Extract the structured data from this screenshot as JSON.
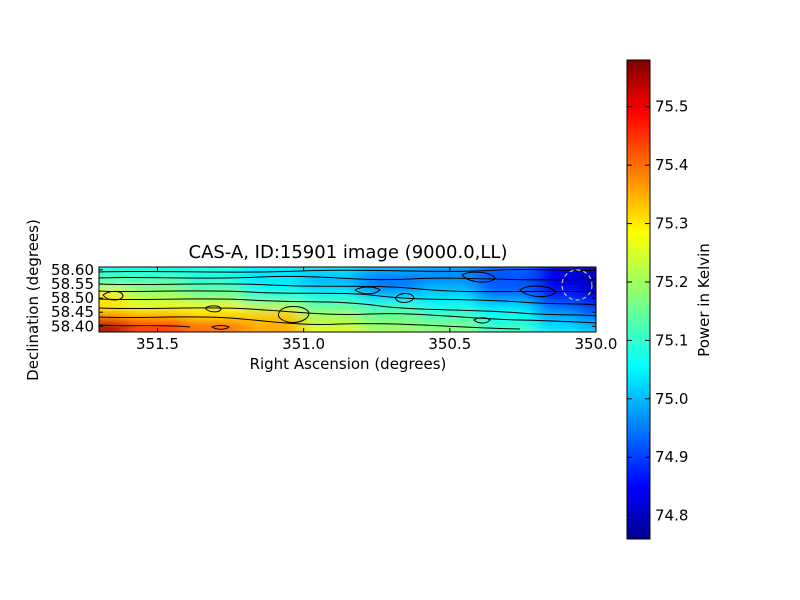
{
  "chart_data": {
    "type": "heatmap",
    "title": "CAS-A, ID:15901 image (9000.0,LL)",
    "xlabel": "Right Ascension (degrees)",
    "ylabel": "Declination (degrees)",
    "xlim": [
      351.7,
      350.0
    ],
    "ylim": [
      58.38,
      58.61
    ],
    "x_inverted": true,
    "xticks": [
      351.5,
      351.0,
      350.5,
      350.0
    ],
    "xtick_labels": [
      "351.5",
      "351.0",
      "350.5",
      "350.0"
    ],
    "yticks": [
      58.4,
      58.45,
      58.5,
      58.55,
      58.6
    ],
    "ytick_labels": [
      "58.40",
      "58.45",
      "58.50",
      "58.55",
      "58.60"
    ],
    "colorbar": {
      "label": "Power in Kelvin",
      "range": [
        74.76,
        75.58
      ],
      "ticks": [
        74.8,
        74.9,
        75.0,
        75.1,
        75.2,
        75.3,
        75.4,
        75.5
      ],
      "tick_labels": [
        "74.8",
        "74.9",
        "75.0",
        "75.1",
        "75.2",
        "75.3",
        "75.4",
        "75.5"
      ],
      "colormap": "jet"
    },
    "field_description": {
      "ra_grid": [
        351.7,
        351.5,
        351.3,
        351.1,
        350.9,
        350.7,
        350.5,
        350.3,
        350.1,
        350.0
      ],
      "dec_grid": [
        58.61,
        58.58,
        58.55,
        58.52,
        58.49,
        58.46,
        58.43,
        58.4,
        58.38
      ],
      "power_kelvin": [
        [
          75.07,
          75.08,
          75.1,
          75.05,
          75.06,
          75.03,
          75.0,
          74.95,
          74.85,
          74.8
        ],
        [
          75.12,
          75.1,
          75.08,
          75.05,
          75.03,
          74.98,
          74.97,
          74.93,
          74.85,
          74.82
        ],
        [
          75.12,
          75.14,
          75.1,
          75.05,
          75.0,
          74.95,
          74.98,
          74.93,
          74.85,
          74.8
        ],
        [
          75.25,
          75.18,
          75.15,
          75.08,
          75.05,
          74.98,
          75.02,
          74.94,
          74.87,
          74.82
        ],
        [
          75.3,
          75.22,
          75.18,
          75.12,
          75.1,
          75.05,
          75.05,
          74.98,
          74.9,
          74.86
        ],
        [
          75.28,
          75.26,
          75.28,
          75.22,
          75.15,
          75.12,
          75.08,
          75.05,
          74.95,
          74.9
        ],
        [
          75.38,
          75.34,
          75.3,
          75.32,
          75.2,
          75.15,
          75.12,
          75.08,
          75.0,
          74.95
        ],
        [
          75.52,
          75.42,
          75.38,
          75.33,
          75.22,
          75.18,
          75.16,
          75.1,
          75.03,
          75.0
        ],
        [
          75.57,
          75.45,
          75.4,
          75.35,
          75.25,
          75.2,
          75.18,
          75.12,
          75.05,
          75.02
        ]
      ]
    },
    "annotations": [
      {
        "type": "circle",
        "ra": 350.07,
        "dec": 58.54,
        "style": "dashed",
        "color": "#c8c890"
      }
    ]
  }
}
